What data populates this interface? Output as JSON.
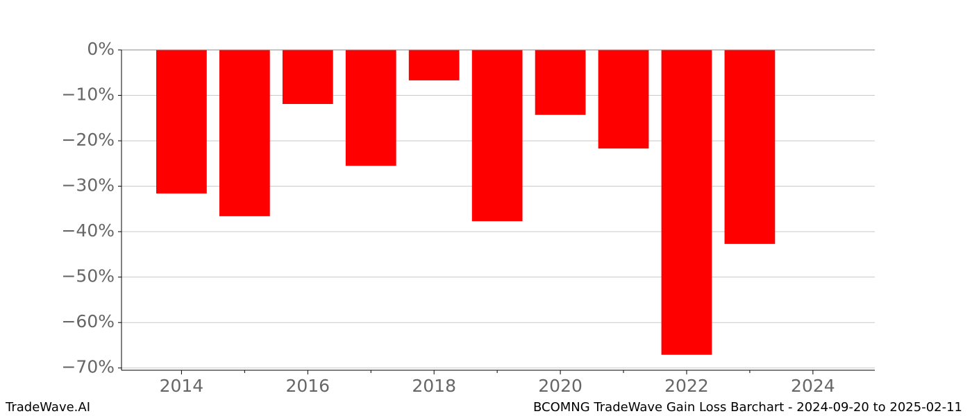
{
  "chart_data": {
    "type": "bar",
    "x": [
      2014,
      2015,
      2016,
      2017,
      2018,
      2019,
      2020,
      2021,
      2022,
      2023
    ],
    "values": [
      -31.6,
      -36.6,
      -11.9,
      -25.5,
      -6.7,
      -37.7,
      -14.3,
      -21.7,
      -67.1,
      -42.7
    ],
    "color": "#ff0000",
    "xlim": [
      2013.05,
      2024.98
    ],
    "xticks": [
      2014,
      2016,
      2018,
      2020,
      2022,
      2024
    ],
    "xticks_minor": [
      2015,
      2017,
      2019,
      2021,
      2023
    ],
    "ylim": [
      -70.5,
      0
    ],
    "yticks": [
      {
        "value": 0,
        "label": "0%"
      },
      {
        "value": -10,
        "label": "−10%"
      },
      {
        "value": -20,
        "label": "−20%"
      },
      {
        "value": -30,
        "label": "−30%"
      },
      {
        "value": -40,
        "label": "−40%"
      },
      {
        "value": -50,
        "label": "−50%"
      },
      {
        "value": -60,
        "label": "−60%"
      },
      {
        "value": -70,
        "label": "−70%"
      }
    ],
    "grid": true,
    "footer_left": "TradeWave.AI",
    "footer_right": "BCOMNG TradeWave Gain Loss Barchart - 2024-09-20 to 2025-02-11"
  }
}
